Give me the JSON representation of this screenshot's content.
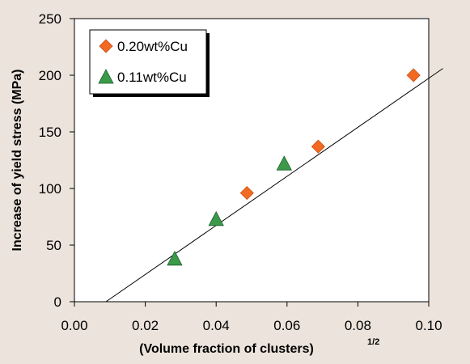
{
  "chart_data": {
    "type": "scatter",
    "xlabel": "(Volume fraction of clusters)",
    "xlabel_superscript": "1/2",
    "ylabel": "Increase of yield stress (MPa)",
    "xlim": [
      0.0,
      0.1
    ],
    "ylim": [
      0,
      250
    ],
    "x_ticks": [
      "0.00",
      "0.02",
      "0.04",
      "0.06",
      "0.08",
      "0.10"
    ],
    "y_ticks": [
      "0",
      "50",
      "100",
      "150",
      "200",
      "250"
    ],
    "grid": false,
    "legend_position": "top-left",
    "series": [
      {
        "name": "0.20wt%Cu",
        "marker": "diamond",
        "color": "#f26a21",
        "points": [
          {
            "x": 0.0487,
            "y": 96
          },
          {
            "x": 0.0688,
            "y": 137
          },
          {
            "x": 0.0957,
            "y": 200
          }
        ]
      },
      {
        "name": "0.11wt%Cu",
        "marker": "triangle",
        "color": "#3a9a4a",
        "points": [
          {
            "x": 0.0283,
            "y": 38
          },
          {
            "x": 0.04,
            "y": 73
          },
          {
            "x": 0.0592,
            "y": 122
          }
        ]
      }
    ],
    "fit_line": {
      "x": [
        0.0089,
        0.104
      ],
      "y": [
        0,
        206
      ]
    }
  }
}
